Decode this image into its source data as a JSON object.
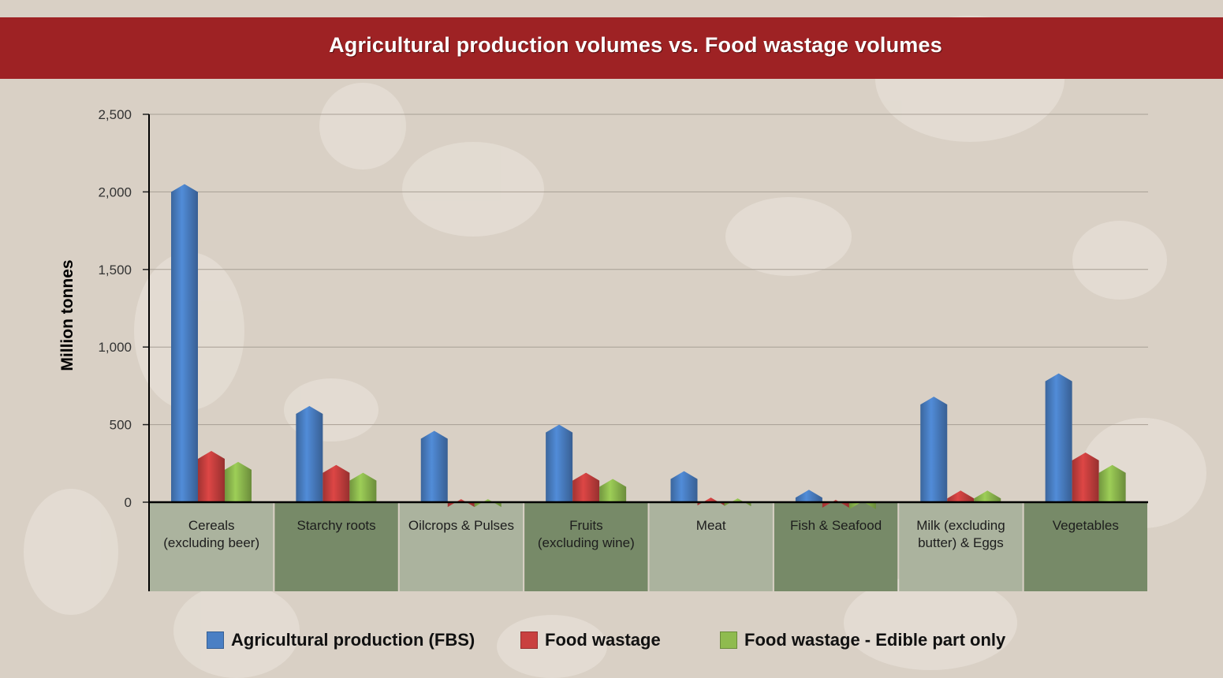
{
  "colors": {
    "background": "#d9d0c5",
    "banner": "#9e2224",
    "production": "#4a7fc4",
    "wastage": "#c9403f",
    "edible": "#8fbb4f",
    "panel_light": "#abb39e",
    "panel_dark": "#778a68"
  },
  "chart_data": {
    "type": "bar",
    "title": "Agricultural production volumes vs. Food wastage volumes",
    "ylabel": "Million tonnes",
    "ylim": [
      0,
      2500
    ],
    "yticks": [
      "0",
      "500",
      "1,000",
      "1,500",
      "2,000",
      "2,500"
    ],
    "ytick_values": [
      0,
      500,
      1000,
      1500,
      2000,
      2500
    ],
    "grid": true,
    "legend_position": "bottom",
    "categories": [
      "Cereals\n(excluding beer)",
      "Starchy roots",
      "Oilcrops & Pulses",
      "Fruits\n(excluding wine)",
      "Meat",
      "Fish & Seafood",
      "Milk (excluding\nbutter) & Eggs",
      "Vegetables"
    ],
    "series": [
      {
        "name": "Agricultural production (FBS)",
        "color": "#4a7fc4",
        "values": [
          2050,
          620,
          460,
          500,
          200,
          80,
          680,
          830
        ]
      },
      {
        "name": "Food wastage",
        "color": "#c9403f",
        "values": [
          330,
          240,
          20,
          190,
          30,
          15,
          75,
          320
        ]
      },
      {
        "name": "Food wastage - Edible part only",
        "color": "#8fbb4f",
        "values": [
          260,
          190,
          20,
          150,
          25,
          5,
          75,
          240
        ]
      }
    ]
  }
}
